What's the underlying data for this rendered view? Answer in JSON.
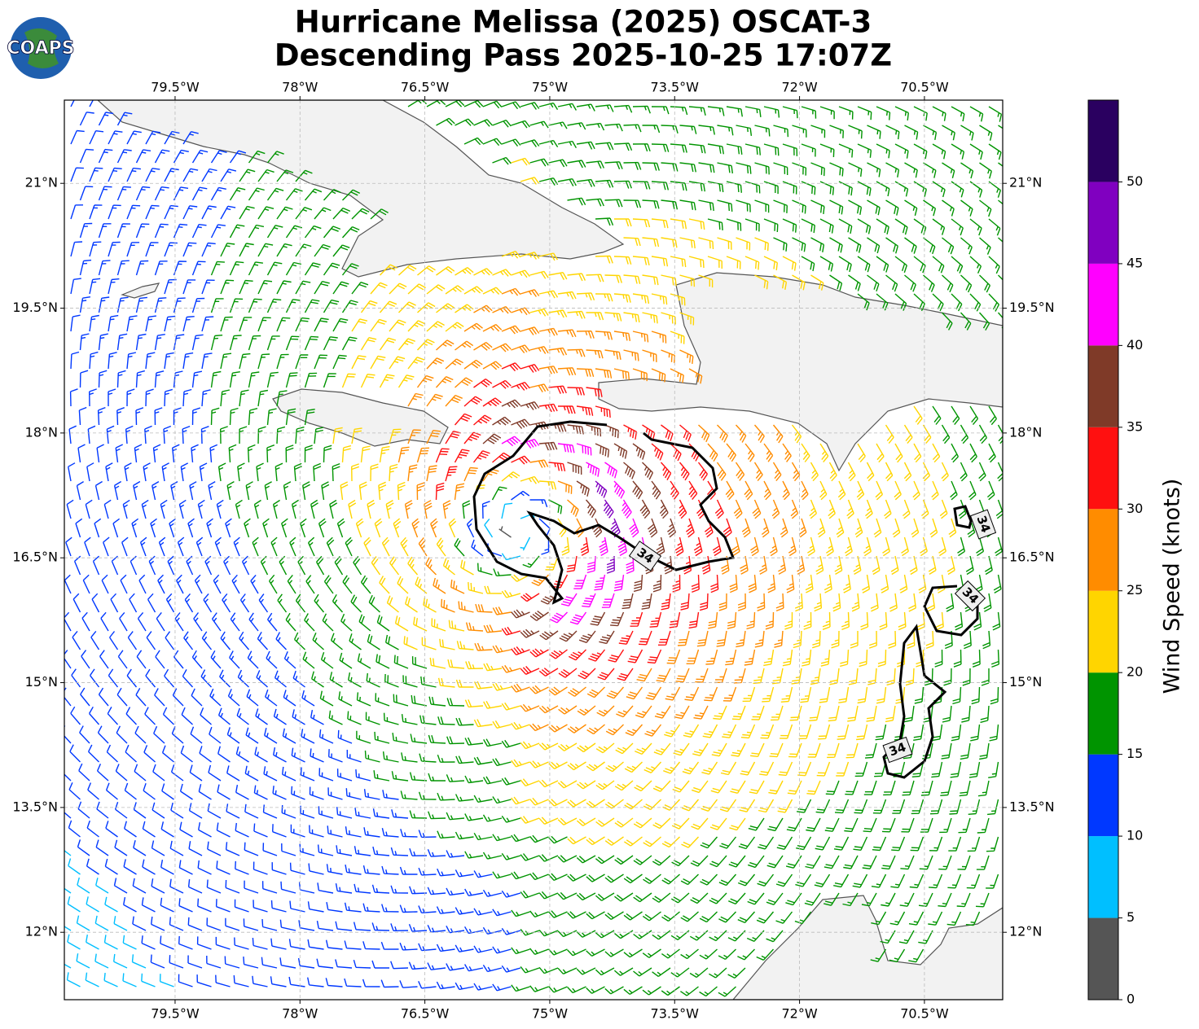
{
  "map": {
    "logo": "COAPS",
    "title": [
      "Hurricane Melissa (2025) OSCAT-3",
      "Descending Pass 2025-10-25 17:07Z"
    ],
    "xlim": [
      -80.83,
      -69.56
    ],
    "ylim": [
      11.19,
      22.0
    ],
    "xticks": [
      {
        "value": -79.5,
        "label": "79.5°W"
      },
      {
        "value": -78,
        "label": "78°W"
      },
      {
        "value": -76.5,
        "label": "76.5°W"
      },
      {
        "value": -75,
        "label": "75°W"
      },
      {
        "value": -73.5,
        "label": "73.5°W"
      },
      {
        "value": -72,
        "label": "72°W"
      },
      {
        "value": -70.5,
        "label": "70.5°W"
      }
    ],
    "yticks": [
      {
        "value": 21,
        "label": "21°N"
      },
      {
        "value": 19.5,
        "label": "19.5°N"
      },
      {
        "value": 18,
        "label": "18°N"
      },
      {
        "value": 16.5,
        "label": "16.5°N"
      },
      {
        "value": 15,
        "label": "15°N"
      },
      {
        "value": 13.5,
        "label": "13.5°N"
      },
      {
        "value": 12,
        "label": "12°N"
      }
    ],
    "grid": true,
    "contour_level": 34,
    "colorbar": {
      "label": "Wind Speed (knots)",
      "bounds": [
        0,
        5,
        10,
        15,
        20,
        25,
        30,
        35,
        40,
        45,
        50,
        55
      ],
      "colors": [
        "#555555",
        "#00bfff",
        "#0038ff",
        "#009400",
        "#ffd500",
        "#ff8c00",
        "#ff1010",
        "#7f3a28",
        "#ff00ff",
        "#8000c0",
        "#2a0060"
      ],
      "ticks": [
        0,
        5,
        10,
        15,
        20,
        25,
        30,
        35,
        40,
        45,
        50
      ]
    }
  }
}
